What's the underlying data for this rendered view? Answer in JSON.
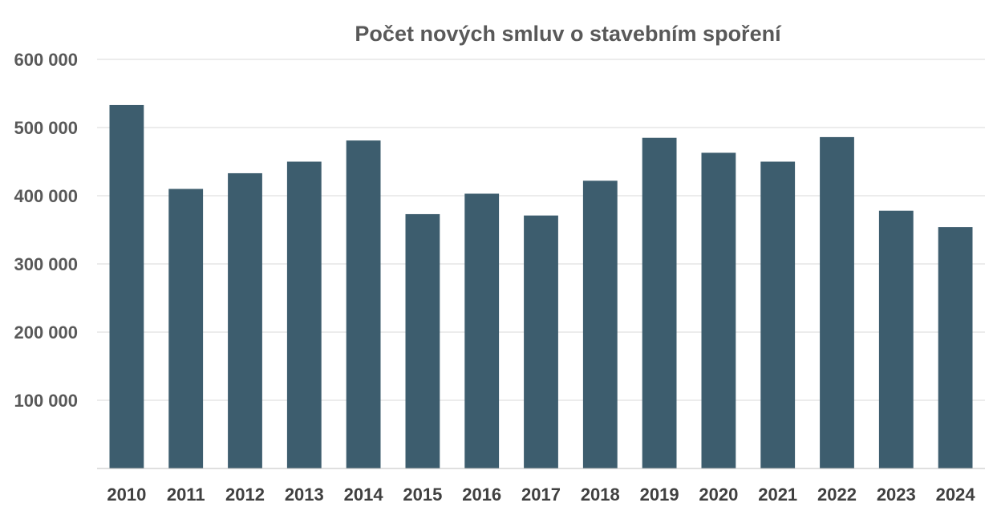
{
  "chart_data": {
    "type": "bar",
    "title": "Počet nových smluv o stavebním spoření",
    "xlabel": "",
    "ylabel": "",
    "categories": [
      "2010",
      "2011",
      "2012",
      "2013",
      "2014",
      "2015",
      "2016",
      "2017",
      "2018",
      "2019",
      "2020",
      "2021",
      "2022",
      "2023",
      "2024"
    ],
    "values": [
      533000,
      410000,
      433000,
      450000,
      481000,
      373000,
      403000,
      371000,
      422000,
      485000,
      463000,
      450000,
      486000,
      378000,
      354000
    ],
    "ylim": [
      0,
      600000
    ],
    "yticks": [
      100000,
      200000,
      300000,
      400000,
      500000,
      600000
    ],
    "ytick_labels": [
      "100 000",
      "200 000",
      "300 000",
      "400 000",
      "500 000",
      "600 000"
    ],
    "grid": true,
    "bar_color": "#3d5d6e",
    "legend": "none"
  }
}
